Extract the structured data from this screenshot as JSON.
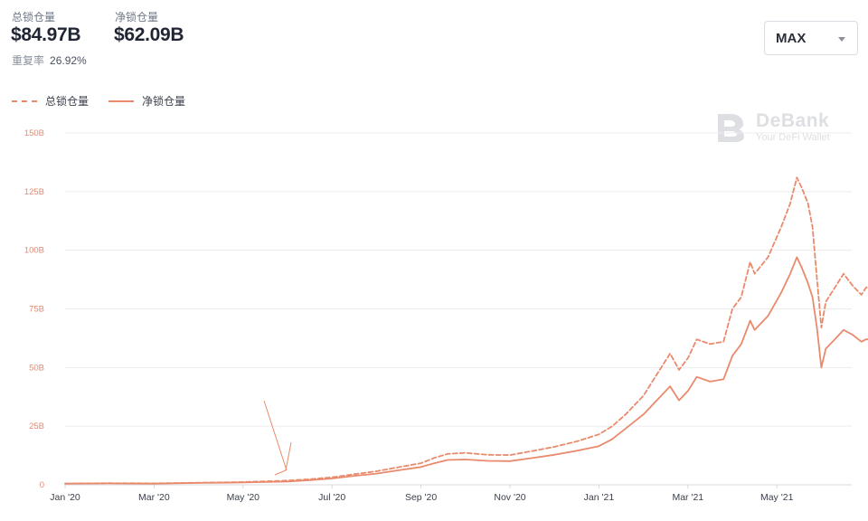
{
  "stats": {
    "total_label": "总锁仓量",
    "total_value": "$84.97B",
    "net_label": "净锁仓量",
    "net_value": "$62.09B",
    "overlap_label": "重复率",
    "overlap_value": "26.92%"
  },
  "range_select": {
    "selected": "MAX"
  },
  "watermark": {
    "title": "DeBank",
    "subtitle": "Your DeFi Wallet"
  },
  "colors": {
    "accent": "#e98a6d",
    "grid": "#ececec",
    "tick_y": "#e28a73"
  },
  "chart_data": {
    "type": "line",
    "title": "",
    "xlabel": "",
    "ylabel": "",
    "x_unit": "month index (0 = Jan 2020)",
    "x_range": [
      0,
      18.1
    ],
    "ylim": [
      0,
      150
    ],
    "y_ticks": [
      "0",
      "25B",
      "50B",
      "75B",
      "100B",
      "125B",
      "150B"
    ],
    "x_ticks": [
      "Jan '20",
      "Mar '20",
      "May '20",
      "Jul '20",
      "Sep '20",
      "Nov '20",
      "Jan '21",
      "Mar '21",
      "May '21"
    ],
    "legend_position": "top-left",
    "grid": true,
    "series": [
      {
        "name": "总锁仓量",
        "style": "dashed",
        "points": [
          [
            0,
            0.5
          ],
          [
            1,
            0.7
          ],
          [
            2,
            0.6
          ],
          [
            3,
            0.9
          ],
          [
            4,
            1.2
          ],
          [
            5,
            1.8
          ],
          [
            5.5,
            2.4
          ],
          [
            6,
            3.2
          ],
          [
            6.5,
            4.5
          ],
          [
            7,
            5.8
          ],
          [
            7.5,
            7.5
          ],
          [
            8,
            9.2
          ],
          [
            8.3,
            11.5
          ],
          [
            8.6,
            13.2
          ],
          [
            9,
            13.6
          ],
          [
            9.5,
            12.8
          ],
          [
            10,
            12.7
          ],
          [
            10.5,
            14.4
          ],
          [
            11,
            16.2
          ],
          [
            11.5,
            18.5
          ],
          [
            12,
            21.5
          ],
          [
            12.3,
            25
          ],
          [
            12.6,
            30
          ],
          [
            13,
            38
          ],
          [
            13.3,
            47
          ],
          [
            13.6,
            56
          ],
          [
            13.8,
            49
          ],
          [
            14,
            54
          ],
          [
            14.2,
            62
          ],
          [
            14.5,
            60
          ],
          [
            14.8,
            61
          ],
          [
            15,
            75
          ],
          [
            15.2,
            80
          ],
          [
            15.4,
            95
          ],
          [
            15.5,
            90
          ],
          [
            15.8,
            97
          ],
          [
            16.1,
            110
          ],
          [
            16.3,
            120
          ],
          [
            16.45,
            131
          ],
          [
            16.55,
            127
          ],
          [
            16.7,
            120
          ],
          [
            16.8,
            110
          ],
          [
            16.9,
            88
          ],
          [
            17,
            67
          ],
          [
            17.1,
            78
          ],
          [
            17.3,
            84
          ],
          [
            17.5,
            90
          ],
          [
            17.7,
            85
          ],
          [
            17.9,
            81
          ],
          [
            18,
            84
          ],
          [
            18.1,
            85
          ]
        ]
      },
      {
        "name": "净锁仓量",
        "style": "solid",
        "points": [
          [
            0,
            0.5
          ],
          [
            1,
            0.6
          ],
          [
            2,
            0.5
          ],
          [
            3,
            0.8
          ],
          [
            4,
            1
          ],
          [
            5,
            1.4
          ],
          [
            5.5,
            2
          ],
          [
            6,
            2.7
          ],
          [
            6.5,
            3.8
          ],
          [
            7,
            4.8
          ],
          [
            7.5,
            6.2
          ],
          [
            8,
            7.6
          ],
          [
            8.3,
            9.2
          ],
          [
            8.6,
            10.6
          ],
          [
            9,
            10.8
          ],
          [
            9.5,
            10.2
          ],
          [
            10,
            10.1
          ],
          [
            10.5,
            11.4
          ],
          [
            11,
            12.8
          ],
          [
            11.5,
            14.5
          ],
          [
            12,
            16.5
          ],
          [
            12.3,
            19.5
          ],
          [
            12.6,
            24
          ],
          [
            13,
            30
          ],
          [
            13.3,
            36
          ],
          [
            13.6,
            42
          ],
          [
            13.8,
            36
          ],
          [
            14,
            40
          ],
          [
            14.2,
            46
          ],
          [
            14.5,
            44
          ],
          [
            14.8,
            45
          ],
          [
            15,
            55
          ],
          [
            15.2,
            60
          ],
          [
            15.4,
            70
          ],
          [
            15.5,
            66
          ],
          [
            15.8,
            72
          ],
          [
            16.1,
            82
          ],
          [
            16.3,
            90
          ],
          [
            16.45,
            97
          ],
          [
            16.55,
            93
          ],
          [
            16.7,
            86
          ],
          [
            16.8,
            80
          ],
          [
            16.9,
            67
          ],
          [
            17,
            50
          ],
          [
            17.1,
            58
          ],
          [
            17.3,
            62
          ],
          [
            17.5,
            66
          ],
          [
            17.7,
            64
          ],
          [
            17.9,
            61
          ],
          [
            18,
            62
          ],
          [
            18.1,
            62
          ]
        ]
      }
    ]
  }
}
